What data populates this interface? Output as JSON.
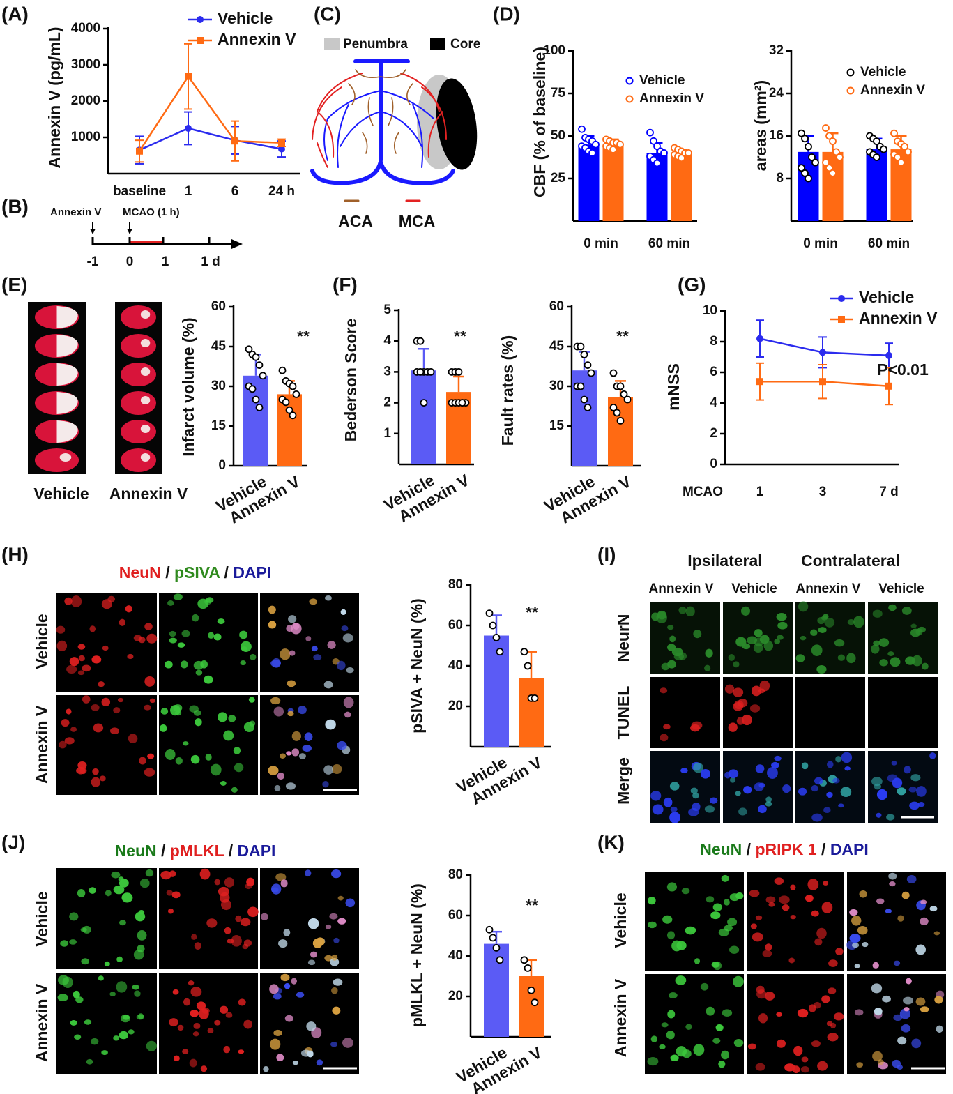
{
  "chart_data": [
    {
      "type": "line",
      "ylabel": "Annexin V (pg/mL)",
      "categories": [
        "baseline",
        "1",
        "6",
        "24 h"
      ],
      "series": [
        {
          "name": "Vehicle",
          "color": "#2b2bee",
          "marker": "circle",
          "values": [
            650,
            1250,
            920,
            680
          ],
          "errors": [
            380,
            450,
            380,
            220
          ]
        },
        {
          "name": "Annexin V",
          "color": "#ff6a13",
          "marker": "square",
          "values": [
            620,
            2680,
            900,
            850
          ],
          "errors": [
            300,
            900,
            550,
            100
          ]
        }
      ],
      "ylim": [
        0,
        4000
      ],
      "yticks": [
        1000,
        2000,
        3000,
        4000
      ],
      "legend": "upper right"
    },
    {
      "type": "bar",
      "ylabel": "CBF (% of baseline)",
      "categories": [
        "0 min",
        "60 min"
      ],
      "series": [
        {
          "name": "Vehicle",
          "color": "#0000ff",
          "point_color": "#0000ff",
          "values": [
            45,
            40
          ],
          "errors": [
            5,
            6
          ],
          "points": [
            [
              54,
              49,
              48,
              47,
              45,
              44,
              43,
              41,
              40
            ],
            [
              52,
              47,
              44,
              41,
              40,
              38,
              36,
              34
            ]
          ]
        },
        {
          "name": "Annexin V",
          "color": "#ff6a13",
          "point_color": "#ff6a13",
          "values": [
            45,
            39
          ],
          "errors": [
            3,
            3
          ],
          "points": [
            [
              48,
              47,
              46,
              46,
              45,
              44,
              43,
              42
            ],
            [
              43,
              42,
              41,
              40,
              40,
              39,
              38,
              37
            ]
          ]
        }
      ],
      "ylim": [
        0,
        100
      ],
      "yticks": [
        25,
        50,
        75,
        100
      ],
      "legend": "upper right"
    },
    {
      "type": "bar",
      "ylabel": "areas (mm²)",
      "categories": [
        "0 min",
        "60 min"
      ],
      "series": [
        {
          "name": "Vehicle",
          "color": "#0000ff",
          "point_color": "#000000",
          "values": [
            13,
            13.5
          ],
          "errors": [
            3,
            2
          ],
          "points": [
            [
              16.5,
              15.5,
              14,
              12,
              11,
              10,
              9,
              8
            ],
            [
              16,
              15.5,
              15,
              14,
              13.5,
              13,
              12.5,
              12
            ]
          ]
        },
        {
          "name": "Annexin V",
          "color": "#ff6a13",
          "point_color": "#ff6a13",
          "values": [
            13,
            13.5
          ],
          "errors": [
            3.5,
            2.5
          ],
          "points": [
            [
              17.5,
              16,
              15,
              13,
              12,
              11,
              10,
              9
            ],
            [
              16.5,
              15,
              14.5,
              14,
              13,
              12.5,
              12,
              11
            ]
          ]
        }
      ],
      "ylim": [
        0,
        32
      ],
      "yticks": [
        8,
        16,
        24,
        32
      ],
      "legend": "upper right"
    },
    {
      "type": "bar",
      "ylabel": "Infarct volume (%)",
      "categories": [
        "Vehicle",
        "Annexin V"
      ],
      "values": [
        34,
        27
      ],
      "errors": [
        8,
        5
      ],
      "colors": [
        "#5b5bf5",
        "#ff6a13"
      ],
      "point_color": "#000000",
      "points": [
        [
          44,
          42,
          41,
          38,
          34,
          30,
          29,
          25,
          22
        ],
        [
          36,
          32,
          31,
          30,
          27,
          25,
          24,
          21,
          19
        ]
      ],
      "ylim": [
        0,
        60
      ],
      "yticks": [
        0,
        15,
        30,
        45,
        60
      ],
      "annotation": "**"
    },
    {
      "type": "bar",
      "ylabel": "Bederson Score",
      "categories": [
        "Vehicle",
        "Annexin V"
      ],
      "values": [
        3.05,
        2.35
      ],
      "errors": [
        0.7,
        0.5
      ],
      "colors": [
        "#5b5bf5",
        "#ff6a13"
      ],
      "point_color": "#000000",
      "points": [
        [
          4,
          4,
          3,
          3,
          3,
          3,
          3,
          2
        ],
        [
          3,
          3,
          3,
          2,
          2,
          2,
          2,
          2,
          2
        ]
      ],
      "ylim": [
        0,
        5
      ],
      "yticks": [
        1,
        2,
        3,
        4,
        5
      ],
      "annotation": "**"
    },
    {
      "type": "bar",
      "ylabel": "Fault rates (%)",
      "categories": [
        "Vehicle",
        "Annexin V"
      ],
      "values": [
        36,
        26
      ],
      "errors": [
        7,
        6
      ],
      "colors": [
        "#5b5bf5",
        "#ff6a13"
      ],
      "point_color": "#000000",
      "points": [
        [
          45,
          45,
          42,
          38,
          35,
          30,
          30,
          25,
          22
        ],
        [
          35,
          30,
          30,
          27,
          25,
          22,
          20,
          17
        ]
      ],
      "ylim": [
        0,
        60
      ],
      "yticks": [
        15,
        30,
        45,
        60
      ],
      "annotation": "**"
    },
    {
      "type": "line",
      "ylabel": "mNSS",
      "xlabel": "MCAO",
      "categories": [
        "1",
        "3",
        "7 d"
      ],
      "series": [
        {
          "name": "Vehicle",
          "color": "#2b2bee",
          "marker": "circle",
          "values": [
            8.2,
            7.3,
            7.1
          ],
          "errors": [
            1.2,
            1,
            0.8
          ]
        },
        {
          "name": "Annexin V",
          "color": "#ff6a13",
          "marker": "square",
          "values": [
            5.4,
            5.4,
            5.1
          ],
          "errors": [
            1.2,
            1.1,
            1.2
          ]
        }
      ],
      "ylim": [
        0,
        10
      ],
      "yticks": [
        0,
        2,
        4,
        6,
        8,
        10
      ],
      "legend": "upper right",
      "annotation": "P<0.01"
    },
    {
      "type": "bar",
      "ylabel": "pSIVA + NeuN (%)",
      "categories": [
        "Vehicle",
        "Annexin V"
      ],
      "values": [
        55,
        34
      ],
      "errors": [
        10,
        13
      ],
      "colors": [
        "#5b5bf5",
        "#ff6a13"
      ],
      "point_color": "#000000",
      "points": [
        [
          66,
          60,
          54,
          47
        ],
        [
          47,
          40,
          24,
          24
        ]
      ],
      "ylim": [
        0,
        80
      ],
      "yticks": [
        20,
        40,
        60,
        80
      ],
      "annotation": "**"
    },
    {
      "type": "bar",
      "ylabel": "pMLKL + NeuN (%)",
      "categories": [
        "Vehicle",
        "Annexin V"
      ],
      "values": [
        46,
        30
      ],
      "errors": [
        6,
        8
      ],
      "colors": [
        "#5b5bf5",
        "#ff6a13"
      ],
      "point_color": "#000000",
      "points": [
        [
          53,
          49,
          44,
          38
        ],
        [
          38,
          34,
          23,
          17
        ]
      ],
      "ylim": [
        0,
        80
      ],
      "yticks": [
        20,
        40,
        60,
        80
      ],
      "annotation": "**"
    }
  ],
  "panels": {
    "letters": [
      "(A)",
      "(B)",
      "(C)",
      "(D)",
      "(E)",
      "(F)",
      "(G)",
      "(H)",
      "(I)",
      "(J)",
      "(K)"
    ],
    "timeline": {
      "labels": [
        "Annexin V",
        "MCAO (1 h)"
      ],
      "ticks": [
        "-1",
        "0",
        "1",
        "1 d"
      ]
    },
    "diagram": {
      "legend": [
        "Penumbra",
        "Core"
      ],
      "vessels": [
        "ACA",
        "MCA"
      ]
    },
    "slices": [
      "Vehicle",
      "Annexin V"
    ],
    "separator": "/",
    "H": {
      "stains": [
        "NeuN",
        "pSIVA",
        "DAPI"
      ],
      "rows": [
        "Vehicle",
        "Annexin V"
      ]
    },
    "I": {
      "groups": [
        "Ipsilateral",
        "Contralateral"
      ],
      "columns": [
        "Annexin V",
        "Vehicle",
        "Annexin V",
        "Vehicle"
      ],
      "rows": [
        "NeurN",
        "TUNEL",
        "Merge"
      ]
    },
    "J": {
      "stains": [
        "NeuN",
        "pMLKL",
        "DAPI"
      ],
      "rows": [
        "Vehicle",
        "Annexin V"
      ]
    },
    "K": {
      "stains": [
        "NeuN",
        "pRIPK 1",
        "DAPI"
      ],
      "rows": [
        "Vehicle",
        "Annexin V"
      ]
    }
  }
}
